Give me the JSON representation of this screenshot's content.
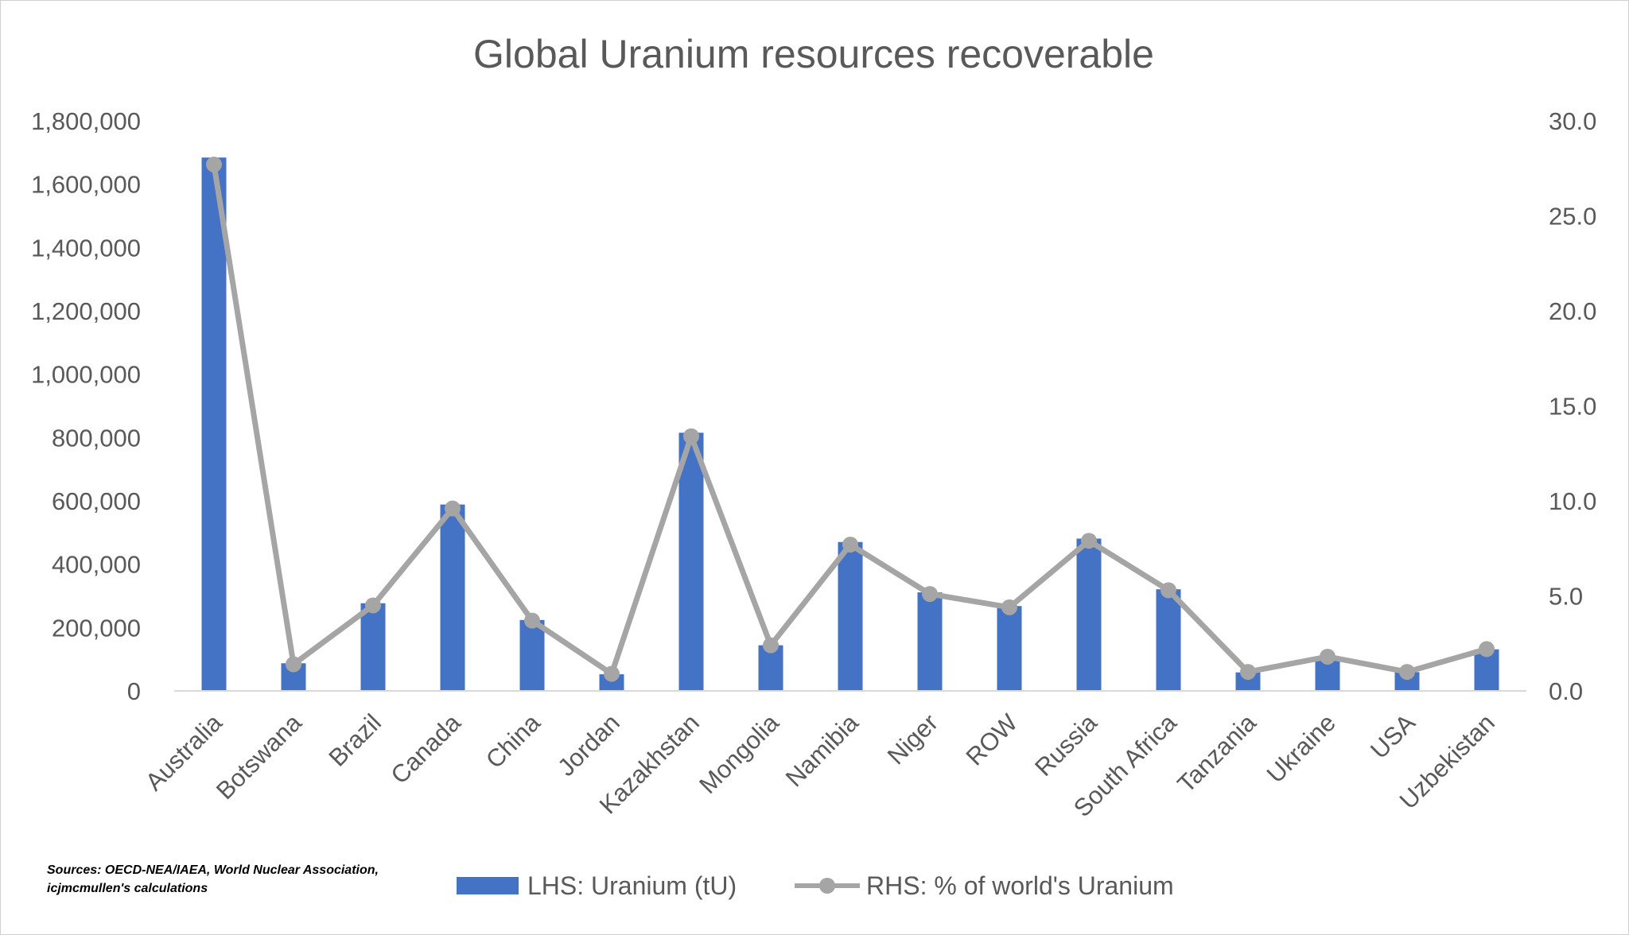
{
  "chart_data": {
    "type": "bar",
    "title": "Global Uranium resources recoverable",
    "categories": [
      "Australia",
      "Botswana",
      "Brazil",
      "Canada",
      "China",
      "Jordan",
      "Kazakhstan",
      "Mongolia",
      "Namibia",
      "Niger",
      "ROW",
      "Russia",
      "South Africa",
      "Tanzania",
      "Ukraine",
      "USA",
      "Uzbekistan"
    ],
    "series": [
      {
        "name": "LHS: Uranium (tU)",
        "type": "bar",
        "axis": "left",
        "color": "#4472C4",
        "values": [
          1684100,
          87200,
          276800,
          588500,
          223900,
          52500,
          815200,
          144100,
          470100,
          311100,
          268000,
          480900,
          320900,
          58500,
          107200,
          59400,
          131300
        ]
      },
      {
        "name": "RHS: % of world's Uranium",
        "type": "line",
        "axis": "right",
        "color": "#A5A5A5",
        "values": [
          27.7,
          1.4,
          4.5,
          9.6,
          3.7,
          0.9,
          13.4,
          2.4,
          7.7,
          5.1,
          4.4,
          7.9,
          5.3,
          1.0,
          1.8,
          1.0,
          2.2
        ]
      }
    ],
    "ylim_left": [
      0,
      1800000
    ],
    "yticks_left": [
      "0",
      "200,000",
      "400,000",
      "600,000",
      "800,000",
      "1,000,000",
      "1,200,000",
      "1,400,000",
      "1,600,000",
      "1,800,000"
    ],
    "ylim_right": [
      0,
      30
    ],
    "yticks_right": [
      "0.0",
      "5.0",
      "10.0",
      "15.0",
      "20.0",
      "25.0",
      "30.0"
    ],
    "grid": false,
    "legend_position": "bottom",
    "source_note": [
      "Sources: OECD-NEA/IAEA, World Nuclear Association,",
      "icjmcmullen's calculations"
    ]
  }
}
